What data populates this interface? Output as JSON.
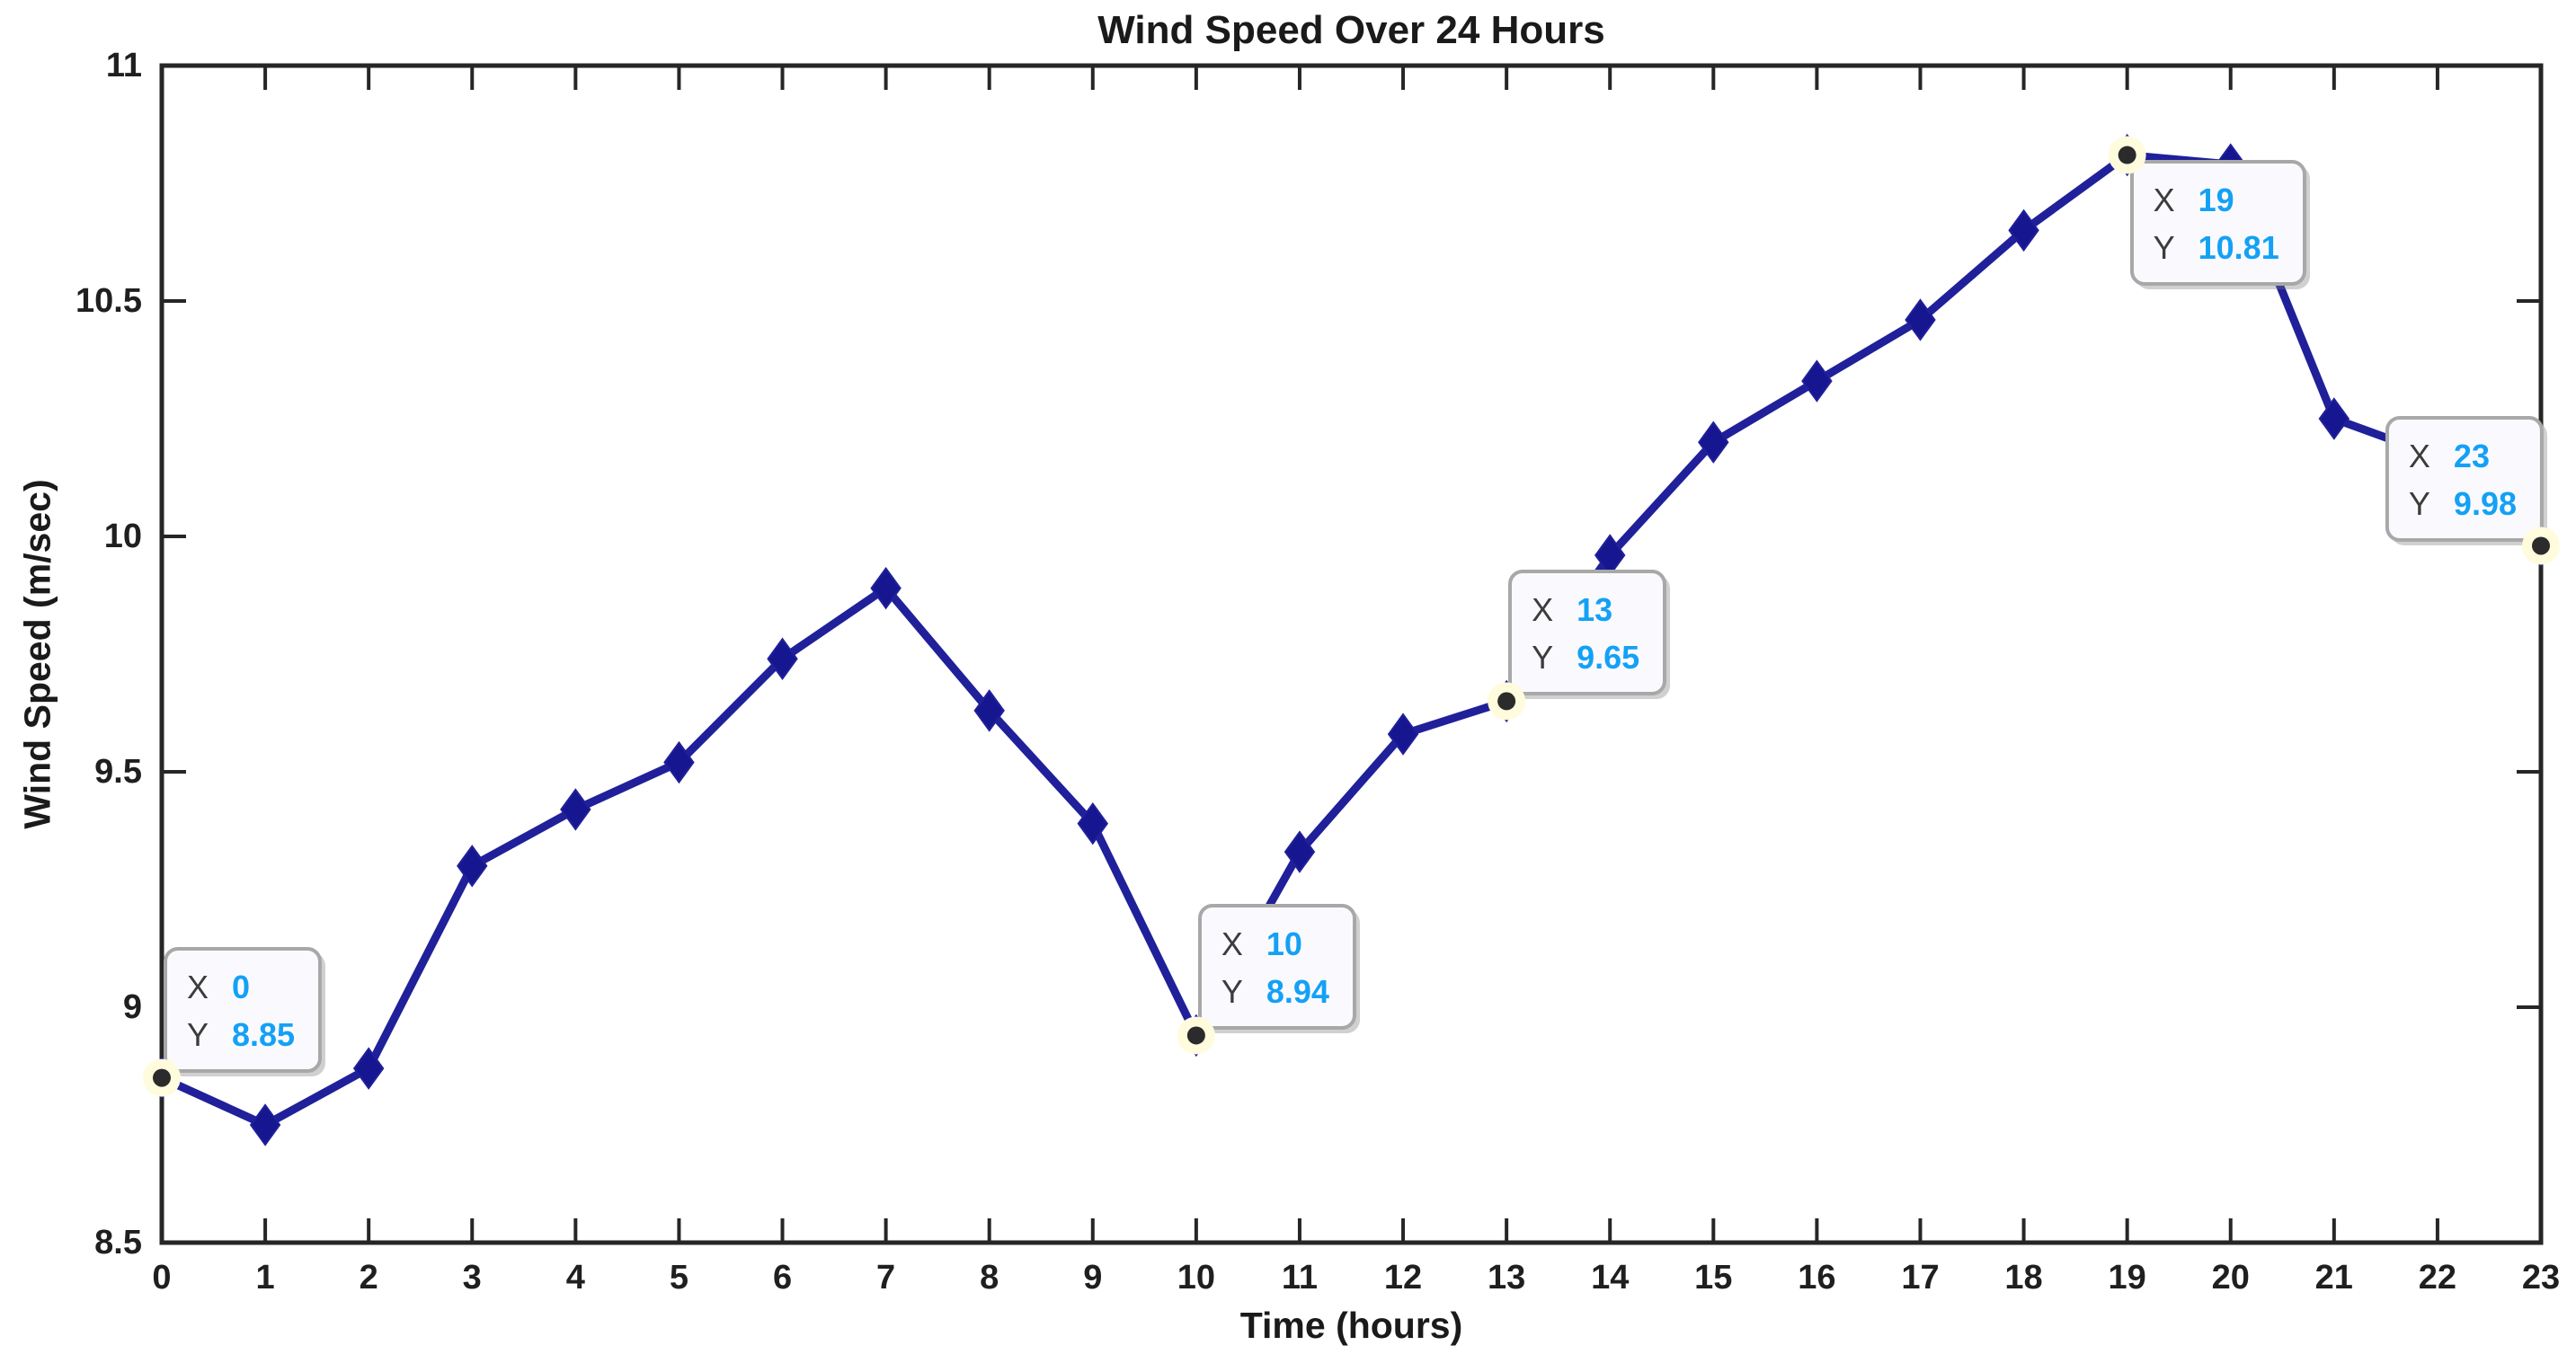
{
  "chart_data": {
    "type": "line",
    "title": "Wind Speed Over 24 Hours",
    "xlabel": "Time (hours)",
    "ylabel": "Wind Speed (m/sec)",
    "x": [
      0,
      1,
      2,
      3,
      4,
      5,
      6,
      7,
      8,
      9,
      10,
      11,
      12,
      13,
      14,
      15,
      16,
      17,
      18,
      19,
      20,
      21,
      22,
      23
    ],
    "y": [
      8.85,
      8.75,
      8.87,
      9.3,
      9.42,
      9.52,
      9.74,
      9.89,
      9.63,
      9.39,
      8.94,
      9.33,
      9.58,
      9.65,
      9.96,
      10.2,
      10.33,
      10.46,
      10.65,
      10.81,
      10.79,
      10.25,
      10.17,
      9.98
    ],
    "xlim": [
      0,
      23
    ],
    "ylim": [
      8.5,
      11
    ],
    "xticks": [
      0,
      1,
      2,
      3,
      4,
      5,
      6,
      7,
      8,
      9,
      10,
      11,
      12,
      13,
      14,
      15,
      16,
      17,
      18,
      19,
      20,
      21,
      22,
      23
    ],
    "xtick_labels": [
      "0",
      "1",
      "2",
      "3",
      "4",
      "5",
      "6",
      "7",
      "8",
      "9",
      "10",
      "11",
      "12",
      "13",
      "14",
      "15",
      "16",
      "17",
      "18",
      "19",
      "20",
      "21",
      "22",
      "23"
    ],
    "yticks": [
      8.5,
      9,
      9.5,
      10,
      10.5,
      11
    ],
    "ytick_labels": [
      "8.5",
      "9",
      "9.5",
      "10",
      "10.5",
      "11"
    ],
    "grid": false,
    "legend": null,
    "marker": "diamond",
    "datatips": [
      {
        "point_x": 0,
        "x_label": "X",
        "y_label": "Y",
        "x_value": "0",
        "y_value": "8.85",
        "placement": "ne"
      },
      {
        "point_x": 10,
        "x_label": "X",
        "y_label": "Y",
        "x_value": "10",
        "y_value": "8.94",
        "placement": "ne"
      },
      {
        "point_x": 13,
        "x_label": "X",
        "y_label": "Y",
        "x_value": "13",
        "y_value": "9.65",
        "placement": "ne"
      },
      {
        "point_x": 19,
        "x_label": "X",
        "y_label": "Y",
        "x_value": "19",
        "y_value": "10.81",
        "placement": "se"
      },
      {
        "point_x": 23,
        "x_label": "X",
        "y_label": "Y",
        "x_value": "23",
        "y_value": "9.98",
        "placement": "nw"
      }
    ]
  },
  "colors": {
    "line": "#20209a",
    "marker_fill": "#161690",
    "axis": "#262626",
    "tick_text": "#1f1f1f",
    "title_text": "#1a1a1a",
    "datatip_value": "#14a1f5",
    "datatip_label": "#3c3c3c",
    "datatip_bg": "#fafafe",
    "datatip_border": "#a8a8a8",
    "highlight_ring": "#fffbdd",
    "highlight_dot": "#2b2b2b",
    "background": "#ffffff"
  }
}
